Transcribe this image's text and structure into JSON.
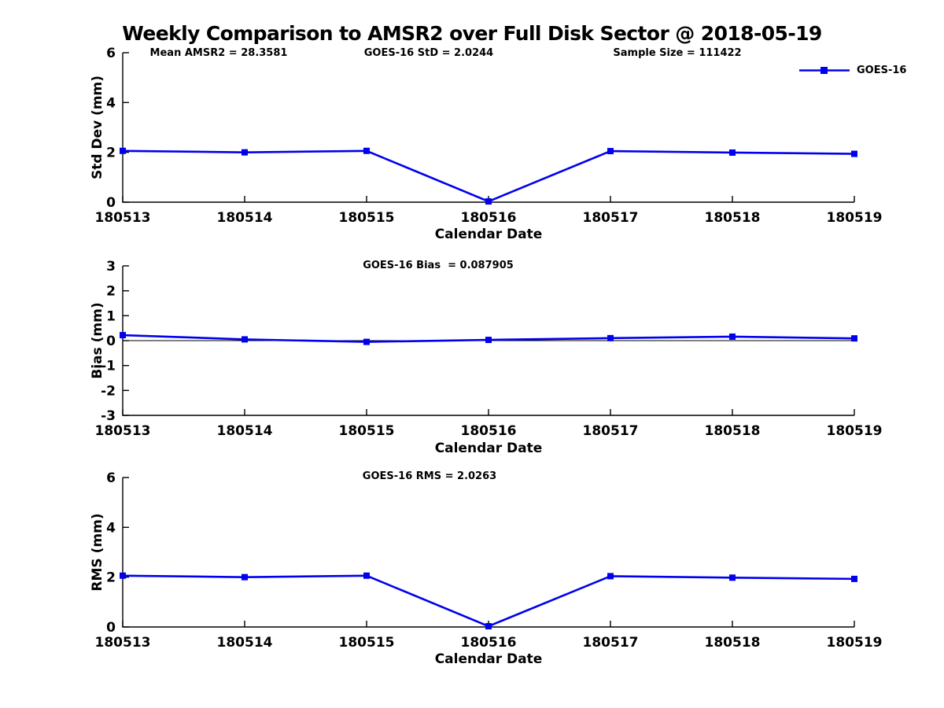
{
  "title": "Weekly Comparison to AMSR2 over Full Disk Sector @ 2018-05-19",
  "colors": {
    "line": "#0000EE",
    "axis": "#000000",
    "zero_line": "#000000",
    "text": "#000000"
  },
  "legend": {
    "label": "GOES-16",
    "position": "top-right"
  },
  "header_stats": [
    {
      "label": "Mean AMSR2 = 28.3581"
    },
    {
      "label": "GOES-16 StD = 2.0244"
    },
    {
      "label": "Sample Size = 111422"
    }
  ],
  "chart_data": [
    {
      "type": "line",
      "ylabel": "Std Dev (mm)",
      "xlabel": "Calendar Date",
      "annotation": "",
      "categories": [
        "180513",
        "180514",
        "180515",
        "180516",
        "180517",
        "180518",
        "180519"
      ],
      "series": [
        {
          "name": "GOES-16",
          "values": [
            2.06,
            2.0,
            2.06,
            0.03,
            2.05,
            1.99,
            1.94
          ]
        }
      ],
      "ylim": [
        0,
        6
      ],
      "yticks": [
        0,
        2,
        4,
        6
      ],
      "zero_line": false,
      "grid": false,
      "marker": "square"
    },
    {
      "type": "line",
      "ylabel": "Bias (mm)",
      "xlabel": "Calendar Date",
      "annotation": "GOES-16 Bias  = 0.087905",
      "categories": [
        "180513",
        "180514",
        "180515",
        "180516",
        "180517",
        "180518",
        "180519"
      ],
      "series": [
        {
          "name": "GOES-16",
          "values": [
            0.22,
            0.05,
            -0.05,
            0.03,
            0.1,
            0.16,
            0.09
          ]
        }
      ],
      "ylim": [
        -3,
        3
      ],
      "yticks": [
        -3,
        -2,
        -1,
        0,
        1,
        2,
        3
      ],
      "zero_line": true,
      "grid": false,
      "marker": "square"
    },
    {
      "type": "line",
      "ylabel": "RMS (mm)",
      "xlabel": "Calendar Date",
      "annotation": "GOES-16 RMS = 2.0263",
      "categories": [
        "180513",
        "180514",
        "180515",
        "180516",
        "180517",
        "180518",
        "180519"
      ],
      "series": [
        {
          "name": "GOES-16",
          "values": [
            2.06,
            2.0,
            2.06,
            0.03,
            2.04,
            1.98,
            1.93
          ]
        }
      ],
      "ylim": [
        0,
        6
      ],
      "yticks": [
        0,
        2,
        4,
        6
      ],
      "zero_line": false,
      "grid": false,
      "marker": "square"
    }
  ]
}
